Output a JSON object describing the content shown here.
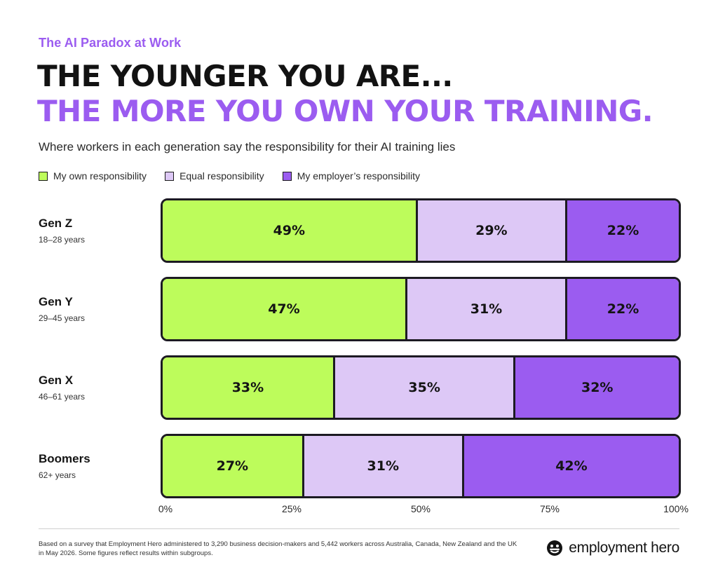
{
  "header": {
    "eyebrow": "The AI Paradox at Work",
    "headline_line1": "THE YOUNGER YOU ARE...",
    "headline_line2": "THE MORE YOU OWN YOUR TRAINING.",
    "subtitle": "Where workers in each generation say the responsibility for their AI training lies"
  },
  "colors": {
    "own": "#bdfc5b",
    "equal": "#ddc8f6",
    "employer": "#9b5cf0",
    "accent": "#9b5cf0"
  },
  "chart_data": {
    "type": "bar",
    "orientation": "horizontal",
    "stacked": true,
    "categories": [
      "Gen Z",
      "Gen Y",
      "Gen X",
      "Boomers"
    ],
    "category_subtitles": [
      "18–28 years",
      "29–45 years",
      "46–61 years",
      "62+ years"
    ],
    "series": [
      {
        "name": "My own responsibility",
        "values": [
          49,
          47,
          33,
          27
        ],
        "labels": [
          "49%",
          "47%",
          "33%",
          "27%"
        ]
      },
      {
        "name": "Equal responsibility",
        "values": [
          29,
          31,
          35,
          31
        ],
        "labels": [
          "29%",
          "31%",
          "35%",
          "31%"
        ]
      },
      {
        "name": "My employer’s responsibility",
        "values": [
          22,
          22,
          32,
          42
        ],
        "labels": [
          "22%",
          "22%",
          "32%",
          "42%"
        ]
      }
    ],
    "xlim": [
      0,
      100
    ],
    "xticks": [
      "0%",
      "25%",
      "50%",
      "75%",
      "100%"
    ],
    "grid": false,
    "legend_position": "top-left"
  },
  "footer": {
    "note": "Based on a survey that Employment Hero administered to 3,290 business decision-makers and 5,442 workers across Australia, Canada, New Zealand and the UK in May 2026. Some figures reflect results within subgroups.",
    "brand": "employment hero",
    "brand_icon": "employment-hero-logo-icon"
  }
}
